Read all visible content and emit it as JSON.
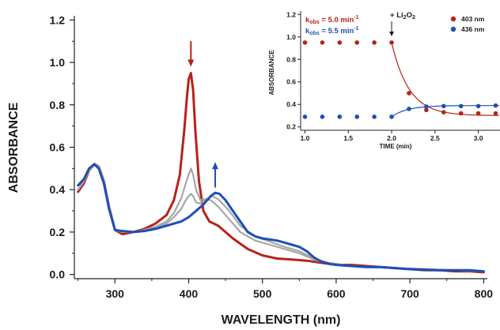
{
  "chart_data": [
    {
      "type": "line",
      "title": "",
      "xlabel": "WAVELENGTH (nm)",
      "ylabel": "ABSORBANCE",
      "xlim": [
        245,
        805
      ],
      "ylim": [
        -0.02,
        1.22
      ],
      "xticks": [
        300,
        400,
        500,
        600,
        700,
        800
      ],
      "yticks": [
        0.0,
        0.2,
        0.4,
        0.6,
        0.8,
        1.0,
        1.2
      ],
      "ytick_labels": [
        "0.0",
        "0.2",
        "0.4",
        "0.6",
        "0.8",
        "1.0",
        "1.2"
      ],
      "series": [
        {
          "color": "#b82218",
          "x": [
            250,
            258,
            265,
            272,
            278,
            285,
            292,
            300,
            310,
            325,
            340,
            355,
            370,
            380,
            388,
            394,
            398,
            400,
            403,
            406,
            409,
            414,
            420,
            428,
            440,
            460,
            480,
            500,
            520,
            540,
            560,
            580,
            600,
            620,
            640,
            660,
            680,
            700,
            720,
            740,
            760,
            780,
            800
          ],
          "y": [
            0.39,
            0.43,
            0.49,
            0.52,
            0.51,
            0.44,
            0.32,
            0.21,
            0.19,
            0.2,
            0.215,
            0.24,
            0.28,
            0.35,
            0.47,
            0.68,
            0.85,
            0.92,
            0.95,
            0.87,
            0.68,
            0.44,
            0.3,
            0.25,
            0.23,
            0.17,
            0.12,
            0.09,
            0.075,
            0.07,
            0.065,
            0.055,
            0.045,
            0.045,
            0.04,
            0.035,
            0.03,
            0.025,
            0.02,
            0.02,
            0.015,
            0.015,
            0.01
          ]
        },
        {
          "color": "#a6a6a6",
          "x": [
            250,
            258,
            265,
            272,
            278,
            285,
            292,
            300,
            310,
            325,
            340,
            355,
            370,
            380,
            390,
            396,
            400,
            403,
            406,
            410,
            416,
            422,
            430,
            440,
            455,
            470,
            490,
            510,
            530,
            550,
            570,
            590,
            610,
            640,
            680,
            720,
            760,
            800
          ],
          "y": [
            0.4,
            0.44,
            0.49,
            0.52,
            0.51,
            0.44,
            0.32,
            0.21,
            0.2,
            0.2,
            0.21,
            0.225,
            0.25,
            0.29,
            0.36,
            0.43,
            0.47,
            0.5,
            0.47,
            0.4,
            0.35,
            0.355,
            0.35,
            0.32,
            0.26,
            0.2,
            0.16,
            0.14,
            0.12,
            0.1,
            0.07,
            0.05,
            0.04,
            0.035,
            0.03,
            0.025,
            0.02,
            0.015
          ]
        },
        {
          "color": "#a6a6a6",
          "x": [
            250,
            258,
            265,
            272,
            278,
            285,
            292,
            300,
            310,
            325,
            340,
            355,
            370,
            380,
            390,
            396,
            400,
            403,
            406,
            410,
            416,
            424,
            432,
            440,
            455,
            470,
            490,
            510,
            530,
            550,
            570,
            590,
            610,
            640,
            680,
            720,
            760,
            800
          ],
          "y": [
            0.4,
            0.44,
            0.49,
            0.52,
            0.51,
            0.44,
            0.32,
            0.21,
            0.2,
            0.2,
            0.205,
            0.22,
            0.24,
            0.27,
            0.31,
            0.35,
            0.37,
            0.38,
            0.37,
            0.34,
            0.335,
            0.355,
            0.37,
            0.355,
            0.3,
            0.23,
            0.18,
            0.155,
            0.13,
            0.11,
            0.075,
            0.055,
            0.045,
            0.035,
            0.03,
            0.025,
            0.02,
            0.015
          ]
        },
        {
          "color": "#1c4fb8",
          "x": [
            250,
            258,
            265,
            272,
            278,
            285,
            292,
            300,
            310,
            325,
            340,
            355,
            370,
            380,
            390,
            400,
            410,
            420,
            430,
            436,
            442,
            450,
            460,
            470,
            480,
            490,
            500,
            510,
            520,
            530,
            540,
            550,
            560,
            570,
            580,
            590,
            600,
            620,
            640,
            660,
            680,
            700,
            740,
            780,
            800
          ],
          "y": [
            0.42,
            0.45,
            0.5,
            0.52,
            0.5,
            0.43,
            0.31,
            0.21,
            0.205,
            0.2,
            0.205,
            0.215,
            0.23,
            0.24,
            0.25,
            0.27,
            0.3,
            0.33,
            0.37,
            0.385,
            0.38,
            0.35,
            0.3,
            0.25,
            0.2,
            0.18,
            0.17,
            0.165,
            0.16,
            0.15,
            0.14,
            0.13,
            0.11,
            0.08,
            0.06,
            0.05,
            0.045,
            0.04,
            0.035,
            0.035,
            0.03,
            0.025,
            0.02,
            0.02,
            0.015
          ]
        }
      ]
    },
    {
      "type": "scatter",
      "title": "",
      "xlabel": "TIME (min)",
      "ylabel": "ABSORBANCE",
      "xlim": [
        0.95,
        3.25
      ],
      "ylim": [
        0.17,
        1.23
      ],
      "xticks": [
        1.0,
        1.5,
        2.0,
        2.5,
        3.0
      ],
      "xtick_labels": [
        "1.0",
        "1.5",
        "2.0",
        "2.5",
        "3.0"
      ],
      "yticks": [
        0.2,
        0.4,
        0.6,
        0.8,
        1.0,
        1.2
      ],
      "ytick_labels": [
        "0.2",
        "0.4",
        "0.6",
        "0.8",
        "1.0",
        "1.2"
      ],
      "legend_position": "top-right",
      "series": [
        {
          "name": "403 nm",
          "color": "#b82218",
          "x": [
            1.0,
            1.2,
            1.4,
            1.6,
            1.8,
            2.0,
            2.2,
            2.4,
            2.6,
            2.8,
            3.0,
            3.2
          ],
          "y": [
            0.95,
            0.95,
            0.95,
            0.95,
            0.95,
            0.95,
            0.5,
            0.35,
            0.33,
            0.32,
            0.32,
            0.32
          ],
          "fit": {
            "model": "exponential",
            "x0": 2.0,
            "y0": 0.95,
            "y_inf": 0.3,
            "k": 5.0
          }
        },
        {
          "name": "436 nm",
          "color": "#1c4fb8",
          "x": [
            1.0,
            1.2,
            1.4,
            1.6,
            1.8,
            2.0,
            2.2,
            2.4,
            2.6,
            2.8,
            3.0,
            3.2
          ],
          "y": [
            0.29,
            0.29,
            0.29,
            0.29,
            0.29,
            0.29,
            0.36,
            0.38,
            0.385,
            0.385,
            0.385,
            0.39
          ],
          "fit": {
            "model": "exponential",
            "x0": 2.0,
            "y0": 0.29,
            "y_inf": 0.39,
            "k": 5.5
          }
        }
      ],
      "annotations": [
        {
          "kind": "rate",
          "color": "#b82218",
          "prefix": "k",
          "subscript": "obs",
          "text": " = 5.0 min",
          "superscript": "-1"
        },
        {
          "kind": "rate",
          "color": "#1c4fb8",
          "prefix": "k",
          "subscript": "obs",
          "text": " = 5.5 min",
          "superscript": "-1"
        },
        {
          "kind": "event",
          "color": "#1a1a1a",
          "x": 2.0,
          "text_a": "+ Li",
          "sub_a": "2",
          "text_b": "O",
          "sub_b": "2"
        }
      ]
    }
  ],
  "markers": [
    {
      "kind": "arrow-down",
      "color": "#b82218",
      "x": 403,
      "y_from": 1.1,
      "y_to": 0.98
    },
    {
      "kind": "arrow-up",
      "color": "#1c4fb8",
      "x": 436,
      "y_from": 0.41,
      "y_to": 0.53
    }
  ]
}
